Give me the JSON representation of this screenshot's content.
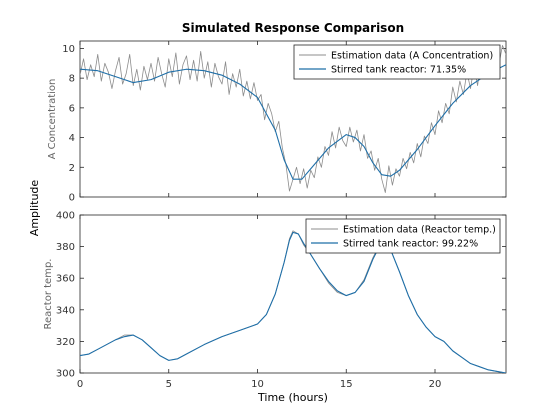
{
  "figure": {
    "title": "Simulated Response Comparison",
    "shared_ylabel": "Amplitude",
    "xlabel": "Time (hours)"
  },
  "colors": {
    "estimation": "#8c8c8c",
    "model": "#1f6fa8",
    "axes": "#262626"
  },
  "chart_data": [
    {
      "type": "line",
      "ylabel": "A Concentration",
      "xlim": [
        0,
        24
      ],
      "ylim": [
        0,
        10.5
      ],
      "xticks": [
        "0",
        "5",
        "10",
        "15",
        "20"
      ],
      "yticks": [
        "0",
        "2",
        "4",
        "6",
        "8",
        "10"
      ],
      "legend_position": "top-right",
      "series": [
        {
          "name": "Estimation data (A Concentration)",
          "x": [
            0,
            0.2,
            0.4,
            0.6,
            0.8,
            1,
            1.2,
            1.4,
            1.6,
            1.8,
            2,
            2.2,
            2.4,
            2.6,
            2.8,
            3,
            3.2,
            3.4,
            3.6,
            3.8,
            4,
            4.2,
            4.4,
            4.6,
            4.8,
            5,
            5.2,
            5.4,
            5.6,
            5.8,
            6,
            6.2,
            6.4,
            6.6,
            6.8,
            7,
            7.2,
            7.4,
            7.6,
            7.8,
            8,
            8.2,
            8.4,
            8.6,
            8.8,
            9,
            9.2,
            9.4,
            9.6,
            9.8,
            10,
            10.2,
            10.4,
            10.6,
            10.8,
            11,
            11.2,
            11.4,
            11.6,
            11.8,
            12,
            12.2,
            12.4,
            12.6,
            12.8,
            13,
            13.2,
            13.4,
            13.6,
            13.8,
            14,
            14.2,
            14.4,
            14.6,
            14.8,
            15,
            15.2,
            15.4,
            15.6,
            15.8,
            16,
            16.2,
            16.4,
            16.6,
            16.8,
            17,
            17.2,
            17.4,
            17.6,
            17.8,
            18,
            18.2,
            18.4,
            18.6,
            18.8,
            19,
            19.2,
            19.4,
            19.6,
            19.8,
            20,
            20.2,
            20.4,
            20.6,
            20.8,
            21,
            21.2,
            21.4,
            21.6,
            21.8,
            22,
            22.2,
            22.4,
            22.6,
            22.8,
            23,
            23.2,
            23.4,
            23.6,
            23.8,
            24
          ],
          "y": [
            8.2,
            9.3,
            7.9,
            8.9,
            8.1,
            9.6,
            7.8,
            9.0,
            8.4,
            7.3,
            8.5,
            9.4,
            7.6,
            8.3,
            9.6,
            7.5,
            8.6,
            7.2,
            8.8,
            7.9,
            9.0,
            7.8,
            9.4,
            8.3,
            7.4,
            9.3,
            8.1,
            9.7,
            7.6,
            8.9,
            9.5,
            7.9,
            9.2,
            7.8,
            9.8,
            8.0,
            9.1,
            7.4,
            9.0,
            8.1,
            7.6,
            9.1,
            6.9,
            8.3,
            7.4,
            8.6,
            6.8,
            7.8,
            6.6,
            7.7,
            6.5,
            6.9,
            5.2,
            6.3,
            5.6,
            4.4,
            5.1,
            3.3,
            2.2,
            0.4,
            1.2,
            2.0,
            0.9,
            1.9,
            0.6,
            1.8,
            1.3,
            2.7,
            2.0,
            3.4,
            2.8,
            4.4,
            3.3,
            4.7,
            3.8,
            3.4,
            4.7,
            3.7,
            4.5,
            3.1,
            4.2,
            2.6,
            3.1,
            1.8,
            2.6,
            1.2,
            0.3,
            2.1,
            0.8,
            1.9,
            1.4,
            2.6,
            1.9,
            3.0,
            2.3,
            3.6,
            2.7,
            4.1,
            3.6,
            5.0,
            4.2,
            5.8,
            5.0,
            6.3,
            5.6,
            7.4,
            6.4,
            7.8,
            6.9,
            8.4,
            7.3,
            8.8,
            7.5,
            9.3,
            8.2,
            9.6,
            8.4,
            9.8,
            8.9,
            10.2,
            9.6
          ]
        },
        {
          "name": "Stirred tank reactor: 71.35%",
          "x": [
            0,
            1,
            2,
            3,
            4,
            5,
            6,
            7,
            8,
            9,
            10,
            11,
            11.5,
            12,
            12.5,
            13,
            14,
            15,
            15.5,
            16,
            16.5,
            17,
            17.5,
            18,
            19,
            20,
            21,
            22,
            23,
            24
          ],
          "y": [
            8.6,
            8.5,
            8.1,
            7.7,
            7.9,
            8.4,
            8.6,
            8.5,
            8.2,
            7.6,
            6.7,
            4.5,
            2.5,
            1.2,
            1.2,
            1.9,
            3.3,
            4.2,
            4.0,
            3.4,
            2.3,
            1.5,
            1.4,
            1.8,
            3.2,
            4.8,
            6.3,
            7.5,
            8.3,
            8.9
          ]
        }
      ]
    },
    {
      "type": "line",
      "ylabel": "Reactor temp.",
      "xlim": [
        0,
        24
      ],
      "ylim": [
        300,
        400
      ],
      "xticks": [
        "0",
        "5",
        "10",
        "15",
        "20"
      ],
      "yticks": [
        "300",
        "320",
        "340",
        "360",
        "380",
        "400"
      ],
      "legend_position": "top-right",
      "series": [
        {
          "name": "Estimation data (Reactor temp.)",
          "x": [
            0,
            0.5,
            1,
            1.5,
            2,
            2.5,
            3,
            3.5,
            4,
            4.5,
            5,
            5.5,
            6,
            7,
            8,
            9,
            10,
            10.5,
            11,
            11.5,
            11.8,
            12,
            12.3,
            12.6,
            13,
            13.5,
            14,
            14.5,
            15,
            15.5,
            16,
            16.5,
            17,
            17.5,
            18,
            18.5,
            19,
            19.5,
            20,
            20.5,
            21,
            21.5,
            22,
            22.5,
            23,
            23.5,
            24
          ],
          "y": [
            311,
            312,
            315,
            318,
            321,
            324,
            324,
            321,
            316,
            311,
            308,
            309,
            312,
            318,
            323,
            327,
            331,
            337,
            350,
            370,
            385,
            390,
            388,
            381,
            375,
            366,
            357,
            351,
            349,
            351,
            359,
            373,
            384,
            378,
            364,
            349,
            337,
            329,
            323,
            320,
            314,
            310,
            306,
            304,
            302,
            301,
            300
          ]
        },
        {
          "name": "Stirred tank reactor: 99.22%",
          "x": [
            0,
            0.5,
            1,
            1.5,
            2,
            2.5,
            3,
            3.5,
            4,
            4.5,
            5,
            5.5,
            6,
            7,
            8,
            9,
            10,
            10.5,
            11,
            11.5,
            11.8,
            12,
            12.3,
            12.6,
            13,
            13.5,
            14,
            14.5,
            15,
            15.5,
            16,
            16.5,
            17,
            17.5,
            18,
            18.5,
            19,
            19.5,
            20,
            20.5,
            21,
            21.5,
            22,
            22.5,
            23,
            23.5,
            24
          ],
          "y": [
            311,
            312,
            315,
            318,
            321,
            323,
            324,
            321,
            316,
            311,
            308,
            309,
            312,
            318,
            323,
            327,
            331,
            337,
            350,
            370,
            384,
            389,
            388,
            382,
            375,
            366,
            358,
            352,
            349,
            351,
            358,
            372,
            383,
            378,
            364,
            349,
            337,
            329,
            323,
            320,
            314,
            310,
            306,
            304,
            302,
            301,
            300
          ]
        }
      ]
    }
  ]
}
